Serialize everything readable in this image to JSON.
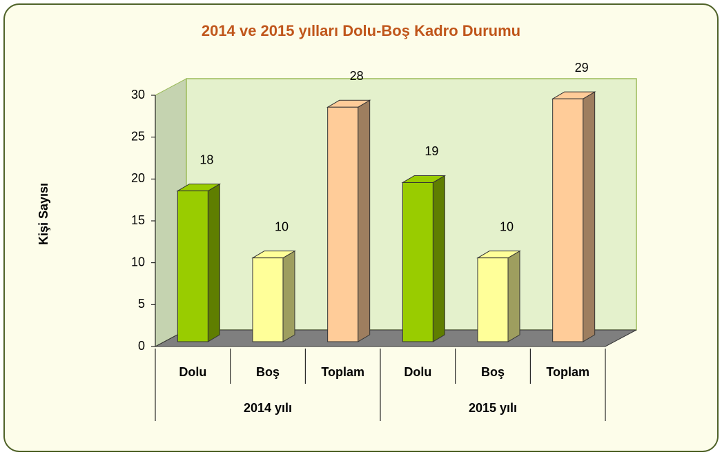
{
  "chart_data": {
    "type": "bar3d",
    "title": "2014 ve 2015 yılları Dolu-Boş Kadro Durumu",
    "ylabel": "Kişi Sayısı",
    "categories": [
      "Dolu",
      "Boş",
      "Toplam",
      "Dolu",
      "Boş",
      "Toplam"
    ],
    "groups": [
      "2014 yılı",
      "2015 yılı"
    ],
    "values": [
      18,
      10,
      28,
      19,
      10,
      29
    ],
    "colors": [
      "#99cc00",
      "#ffff99",
      "#ffcc99",
      "#99cc00",
      "#ffff99",
      "#ffcc99"
    ],
    "ylim": [
      0,
      30
    ],
    "yticks": [
      0,
      5,
      10,
      15,
      20,
      25,
      30
    ]
  }
}
